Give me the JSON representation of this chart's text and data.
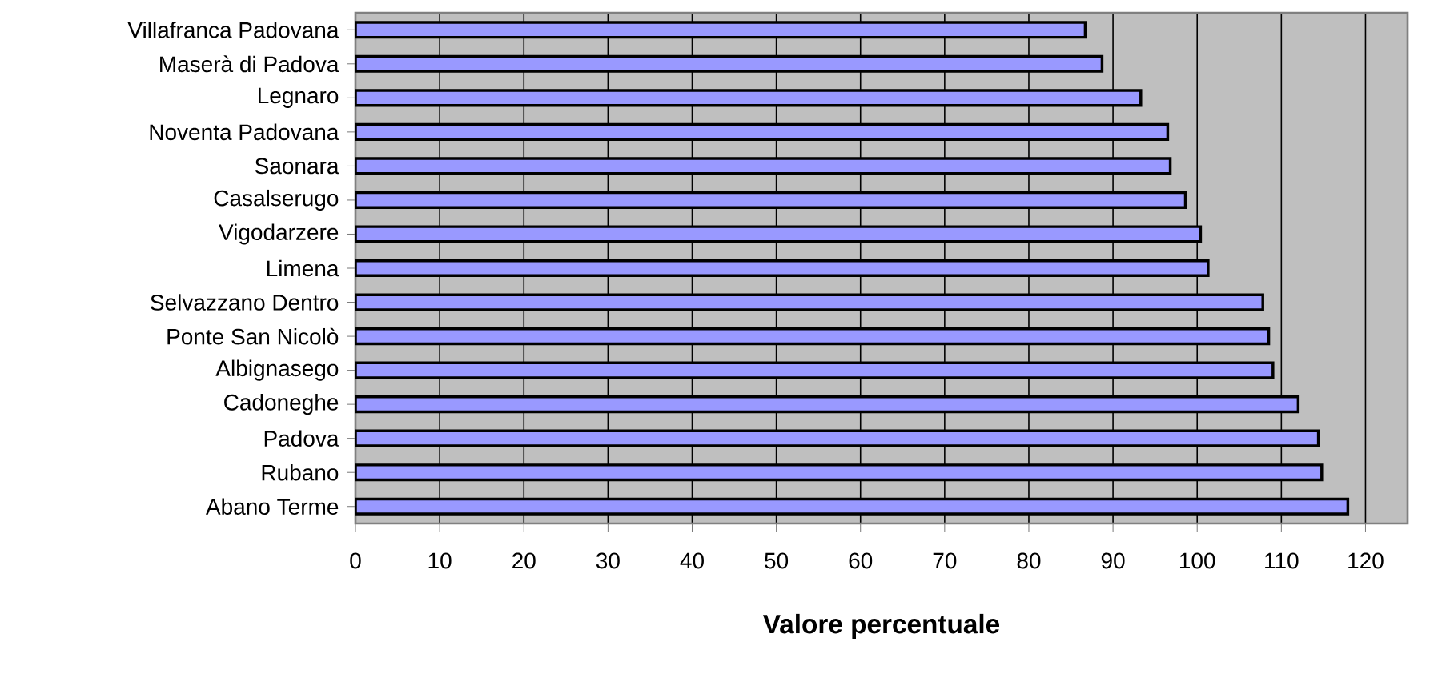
{
  "chart_data": {
    "type": "bar",
    "orientation": "horizontal",
    "xlabel": "Valore percentuale",
    "categories": [
      "Villafranca Padovana",
      "Maserà di Padova",
      "Legnaro",
      "Noventa Padovana",
      "Saonara",
      "Casalserugo",
      "Vigodarzere",
      "Limena",
      "Selvazzano Dentro",
      "Ponte San Nicolò",
      "Albignasego",
      "Cadoneghe",
      "Padova",
      "Rubano",
      "Abano Terme"
    ],
    "values": [
      86.7,
      88.7,
      93.3,
      96.5,
      96.8,
      98.6,
      100.4,
      101.3,
      107.8,
      108.5,
      109.0,
      112.0,
      114.4,
      114.8,
      117.9
    ],
    "color": "#9999ff",
    "xlim": [
      0,
      125
    ],
    "xticks": [
      0,
      10,
      20,
      30,
      40,
      50,
      60,
      70,
      80,
      90,
      100,
      110,
      120
    ],
    "grid": "x"
  }
}
